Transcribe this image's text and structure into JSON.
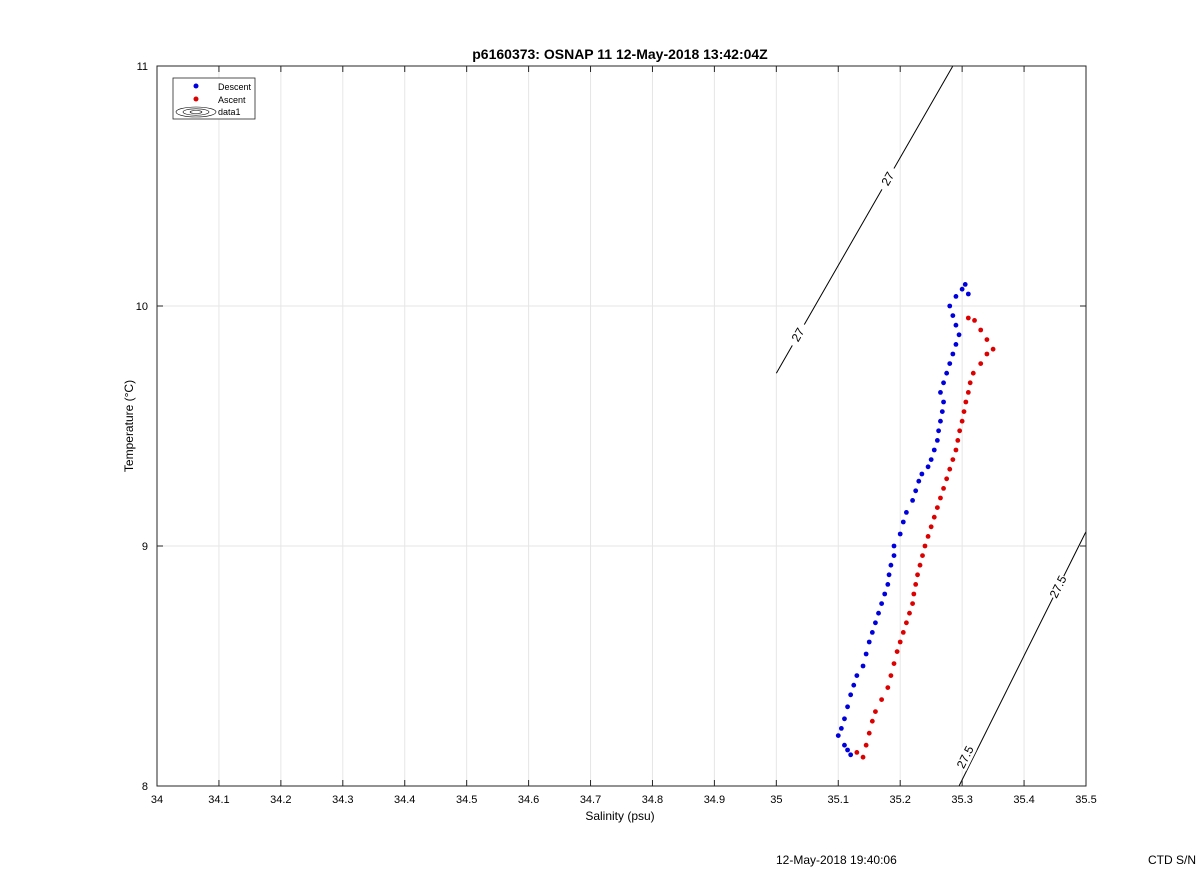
{
  "chart_data": {
    "type": "scatter",
    "title": "p6160373: OSNAP 11 12-May-2018 13:42:04Z",
    "xlabel": "Salinity (psu)",
    "ylabel": "Temperature (°C)",
    "xlim": [
      34,
      35.5
    ],
    "ylim": [
      8,
      11
    ],
    "xticks": [
      "34",
      "34.1",
      "34.2",
      "34.3",
      "34.4",
      "34.5",
      "34.6",
      "34.7",
      "34.8",
      "34.9",
      "35",
      "35.1",
      "35.2",
      "35.3",
      "35.4",
      "35.5"
    ],
    "yticks": [
      "8",
      "9",
      "10",
      "11"
    ],
    "grid": true,
    "legend_position": "top-left",
    "legend": [
      "Descent",
      "Ascent",
      "data1"
    ],
    "series": [
      {
        "name": "Descent",
        "color": "#0000dd",
        "points": [
          [
            35.12,
            8.13
          ],
          [
            35.115,
            8.15
          ],
          [
            35.11,
            8.17
          ],
          [
            35.1,
            8.21
          ],
          [
            35.105,
            8.24
          ],
          [
            35.11,
            8.28
          ],
          [
            35.115,
            8.33
          ],
          [
            35.12,
            8.38
          ],
          [
            35.125,
            8.42
          ],
          [
            35.13,
            8.46
          ],
          [
            35.14,
            8.5
          ],
          [
            35.145,
            8.55
          ],
          [
            35.15,
            8.6
          ],
          [
            35.155,
            8.64
          ],
          [
            35.16,
            8.68
          ],
          [
            35.165,
            8.72
          ],
          [
            35.17,
            8.76
          ],
          [
            35.175,
            8.8
          ],
          [
            35.18,
            8.84
          ],
          [
            35.182,
            8.88
          ],
          [
            35.185,
            8.92
          ],
          [
            35.19,
            8.96
          ],
          [
            35.19,
            9.0
          ],
          [
            35.2,
            9.05
          ],
          [
            35.205,
            9.1
          ],
          [
            35.21,
            9.14
          ],
          [
            35.22,
            9.19
          ],
          [
            35.225,
            9.23
          ],
          [
            35.23,
            9.27
          ],
          [
            35.235,
            9.3
          ],
          [
            35.245,
            9.33
          ],
          [
            35.25,
            9.36
          ],
          [
            35.255,
            9.4
          ],
          [
            35.26,
            9.44
          ],
          [
            35.262,
            9.48
          ],
          [
            35.265,
            9.52
          ],
          [
            35.268,
            9.56
          ],
          [
            35.27,
            9.6
          ],
          [
            35.265,
            9.64
          ],
          [
            35.27,
            9.68
          ],
          [
            35.275,
            9.72
          ],
          [
            35.28,
            9.76
          ],
          [
            35.285,
            9.8
          ],
          [
            35.29,
            9.84
          ],
          [
            35.295,
            9.88
          ],
          [
            35.29,
            9.92
          ],
          [
            35.285,
            9.96
          ],
          [
            35.28,
            10.0
          ],
          [
            35.29,
            10.04
          ],
          [
            35.3,
            10.07
          ],
          [
            35.305,
            10.09
          ],
          [
            35.31,
            10.05
          ]
        ]
      },
      {
        "name": "Ascent",
        "color": "#dd0000",
        "points": [
          [
            35.14,
            8.12
          ],
          [
            35.13,
            8.14
          ],
          [
            35.145,
            8.17
          ],
          [
            35.15,
            8.22
          ],
          [
            35.155,
            8.27
          ],
          [
            35.16,
            8.31
          ],
          [
            35.17,
            8.36
          ],
          [
            35.18,
            8.41
          ],
          [
            35.185,
            8.46
          ],
          [
            35.19,
            8.51
          ],
          [
            35.195,
            8.56
          ],
          [
            35.2,
            8.6
          ],
          [
            35.205,
            8.64
          ],
          [
            35.21,
            8.68
          ],
          [
            35.215,
            8.72
          ],
          [
            35.22,
            8.76
          ],
          [
            35.222,
            8.8
          ],
          [
            35.225,
            8.84
          ],
          [
            35.228,
            8.88
          ],
          [
            35.232,
            8.92
          ],
          [
            35.236,
            8.96
          ],
          [
            35.24,
            9.0
          ],
          [
            35.245,
            9.04
          ],
          [
            35.25,
            9.08
          ],
          [
            35.255,
            9.12
          ],
          [
            35.26,
            9.16
          ],
          [
            35.265,
            9.2
          ],
          [
            35.27,
            9.24
          ],
          [
            35.275,
            9.28
          ],
          [
            35.28,
            9.32
          ],
          [
            35.285,
            9.36
          ],
          [
            35.29,
            9.4
          ],
          [
            35.293,
            9.44
          ],
          [
            35.296,
            9.48
          ],
          [
            35.3,
            9.52
          ],
          [
            35.303,
            9.56
          ],
          [
            35.306,
            9.6
          ],
          [
            35.31,
            9.64
          ],
          [
            35.313,
            9.68
          ],
          [
            35.318,
            9.72
          ],
          [
            35.33,
            9.76
          ],
          [
            35.34,
            9.8
          ],
          [
            35.35,
            9.82
          ],
          [
            35.34,
            9.86
          ],
          [
            35.33,
            9.9
          ],
          [
            35.32,
            9.94
          ],
          [
            35.31,
            9.95
          ]
        ]
      }
    ],
    "contours": [
      {
        "label": "27",
        "line": [
          [
            35.0,
            9.72
          ],
          [
            35.285,
            11.0
          ]
        ],
        "label_at": [
          [
            35.035,
            9.88
          ],
          [
            35.18,
            10.53
          ]
        ]
      },
      {
        "label": "27.5",
        "line": [
          [
            35.295,
            8.0
          ],
          [
            35.5,
            9.06
          ]
        ],
        "label_at": [
          [
            35.305,
            8.12
          ],
          [
            35.455,
            8.83
          ]
        ]
      }
    ]
  },
  "footer": {
    "timestamp": "12-May-2018 19:40:06",
    "ctd": "CTD S/N"
  }
}
